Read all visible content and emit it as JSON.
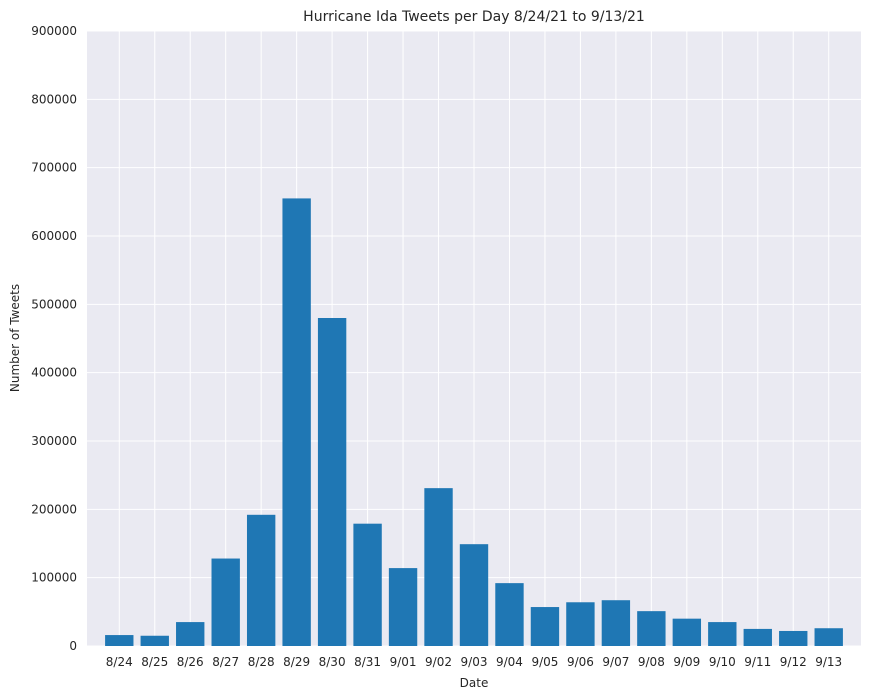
{
  "chart_data": {
    "type": "bar",
    "title": "Hurricane Ida Tweets per Day 8/24/21 to 9/13/21",
    "xlabel": "Date",
    "ylabel": "Number of Tweets",
    "categories": [
      "8/24",
      "8/25",
      "8/26",
      "8/27",
      "8/28",
      "8/29",
      "8/30",
      "8/31",
      "9/01",
      "9/02",
      "9/03",
      "9/04",
      "9/05",
      "9/06",
      "9/07",
      "9/08",
      "9/09",
      "9/10",
      "9/11",
      "9/12",
      "9/13"
    ],
    "values": [
      16000,
      15000,
      35000,
      128000,
      192000,
      655000,
      480000,
      179000,
      114000,
      231000,
      149000,
      92000,
      57000,
      64000,
      67000,
      51000,
      40000,
      35000,
      25000,
      22000,
      26000
    ],
    "ylim": [
      0,
      900000
    ],
    "yticks": [
      "0",
      "100000",
      "200000",
      "300000",
      "400000",
      "500000",
      "600000",
      "700000",
      "800000",
      "900000"
    ],
    "grid": true,
    "colors": {
      "bar": "#1f77b4",
      "plot_background": "#eaeaf2",
      "grid": "#ffffff",
      "text": "#262626"
    }
  }
}
